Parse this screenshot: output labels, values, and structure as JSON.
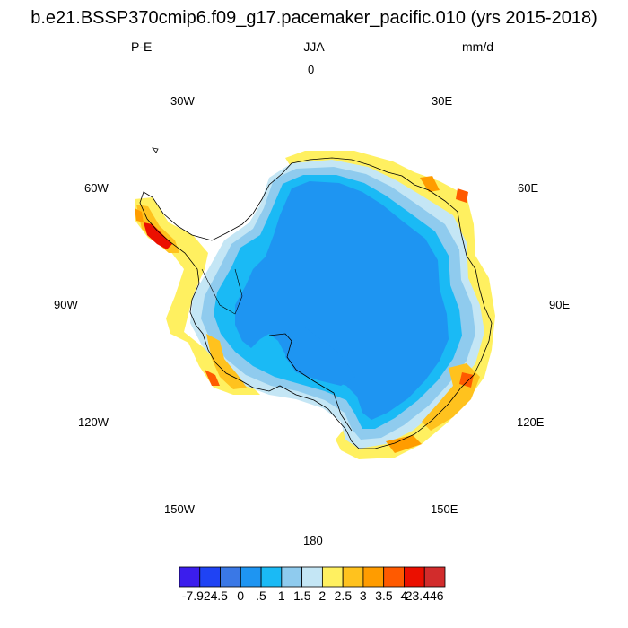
{
  "title": "b.e21.BSSP370cmip6.f09_g17.pacemaker_pacific.010 (yrs 2015-2018)",
  "variable": "P-E",
  "season": "JJA",
  "units": "mm/d",
  "longitude_labels": {
    "n": "0",
    "e30": "30E",
    "e60": "60E",
    "e90": "90E",
    "e120": "120E",
    "e150": "150E",
    "s": "180",
    "w150": "150W",
    "w120": "120W",
    "w90": "90W",
    "w60": "60W",
    "w30": "30W"
  },
  "colorbar": {
    "colors": [
      "#3b1ded",
      "#1f43f4",
      "#3a78e6",
      "#1e95f2",
      "#1abaf5",
      "#8fcbee",
      "#c4e6f5",
      "#fff060",
      "#ffc21e",
      "#ff9c00",
      "#ff5a00",
      "#eb0f00",
      "#d22c2c"
    ],
    "labels": [
      "-7.924",
      "-.5",
      "0",
      ".5",
      "1",
      "1.5",
      "2",
      "2.5",
      "3",
      "3.5",
      "4",
      "23.446"
    ]
  },
  "map_palette": {
    "interior": "#1e95f2",
    "ring_inner": "#1abaf5",
    "ring_outer": "#8fcbee",
    "fringe": "#c4e6f5",
    "positive_low": "#fff060",
    "positive_mid": "#ffc21e",
    "positive_high": "#ff9c00",
    "positive_max": "#eb0f00"
  }
}
